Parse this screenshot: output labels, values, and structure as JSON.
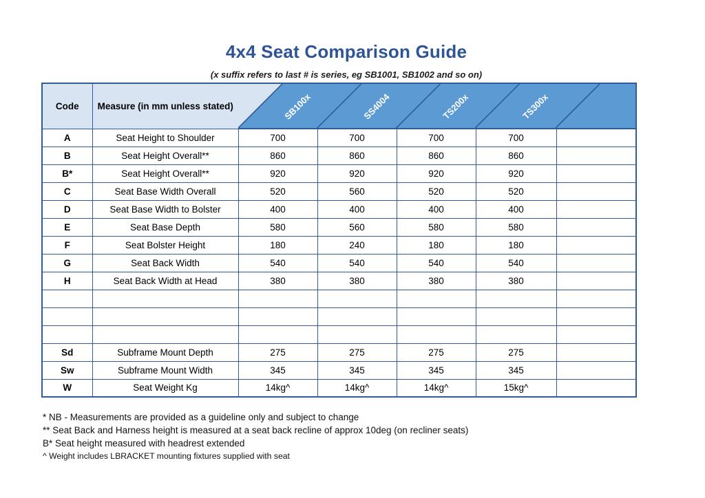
{
  "colors": {
    "title_blue": "#2e5496",
    "band_blue": "#5b9ad3",
    "band_light": "#d9e4f2",
    "grid_border": "#2f5b96"
  },
  "header": {
    "title": "4x4 Seat Comparison Guide",
    "subtitle": "(x suffix refers to last # is series, eg SB1001, SB1002 and so on)"
  },
  "table": {
    "code_header": "Code",
    "measure_header": "Measure (in mm unless stated)",
    "series_headers": [
      "SB100x",
      "SS4004",
      "TS200x",
      "TS300x"
    ],
    "rows": [
      {
        "code": "A",
        "measure": "Seat Height to Shoulder",
        "values": [
          "700",
          "700",
          "700",
          "700",
          ""
        ]
      },
      {
        "code": "B",
        "measure": "Seat Height Overall**",
        "values": [
          "860",
          "860",
          "860",
          "860",
          ""
        ]
      },
      {
        "code": "B*",
        "measure": "Seat Height Overall**",
        "values": [
          "920",
          "920",
          "920",
          "920",
          ""
        ]
      },
      {
        "code": "C",
        "measure": "Seat Base Width Overall",
        "values": [
          "520",
          "560",
          "520",
          "520",
          ""
        ]
      },
      {
        "code": "D",
        "measure": "Seat Base Width to Bolster",
        "values": [
          "400",
          "400",
          "400",
          "400",
          ""
        ]
      },
      {
        "code": "E",
        "measure": "Seat Base Depth",
        "values": [
          "580",
          "560",
          "580",
          "580",
          ""
        ]
      },
      {
        "code": "F",
        "measure": "Seat Bolster Height",
        "values": [
          "180",
          "240",
          "180",
          "180",
          ""
        ]
      },
      {
        "code": "G",
        "measure": "Seat Back Width",
        "values": [
          "540",
          "540",
          "540",
          "540",
          ""
        ]
      },
      {
        "code": "H",
        "measure": "Seat Back Width at Head",
        "values": [
          "380",
          "380",
          "380",
          "380",
          ""
        ]
      },
      {
        "code": "",
        "measure": "",
        "values": [
          "",
          "",
          "",
          "",
          ""
        ]
      },
      {
        "code": "",
        "measure": "",
        "values": [
          "",
          "",
          "",
          "",
          ""
        ]
      },
      {
        "code": "",
        "measure": "",
        "values": [
          "",
          "",
          "",
          "",
          ""
        ]
      },
      {
        "code": "Sd",
        "measure": "Subframe Mount Depth",
        "values": [
          "275",
          "275",
          "275",
          "275",
          ""
        ]
      },
      {
        "code": "Sw",
        "measure": "Subframe Mount Width",
        "values": [
          "345",
          "345",
          "345",
          "345",
          ""
        ]
      },
      {
        "code": "W",
        "measure": "Seat Weight Kg",
        "values": [
          "14kg^",
          "14kg^",
          "14kg^",
          "15kg^",
          ""
        ]
      }
    ]
  },
  "notes": [
    "* NB - Measurements are provided as a guideline only and subject to change",
    "** Seat Back and Harness height is measured at a seat back recline of approx 10deg (on recliner seats)",
    "B* Seat height measured with headrest extended",
    "^ Weight includes LBRACKET mounting fixtures supplied with seat"
  ]
}
